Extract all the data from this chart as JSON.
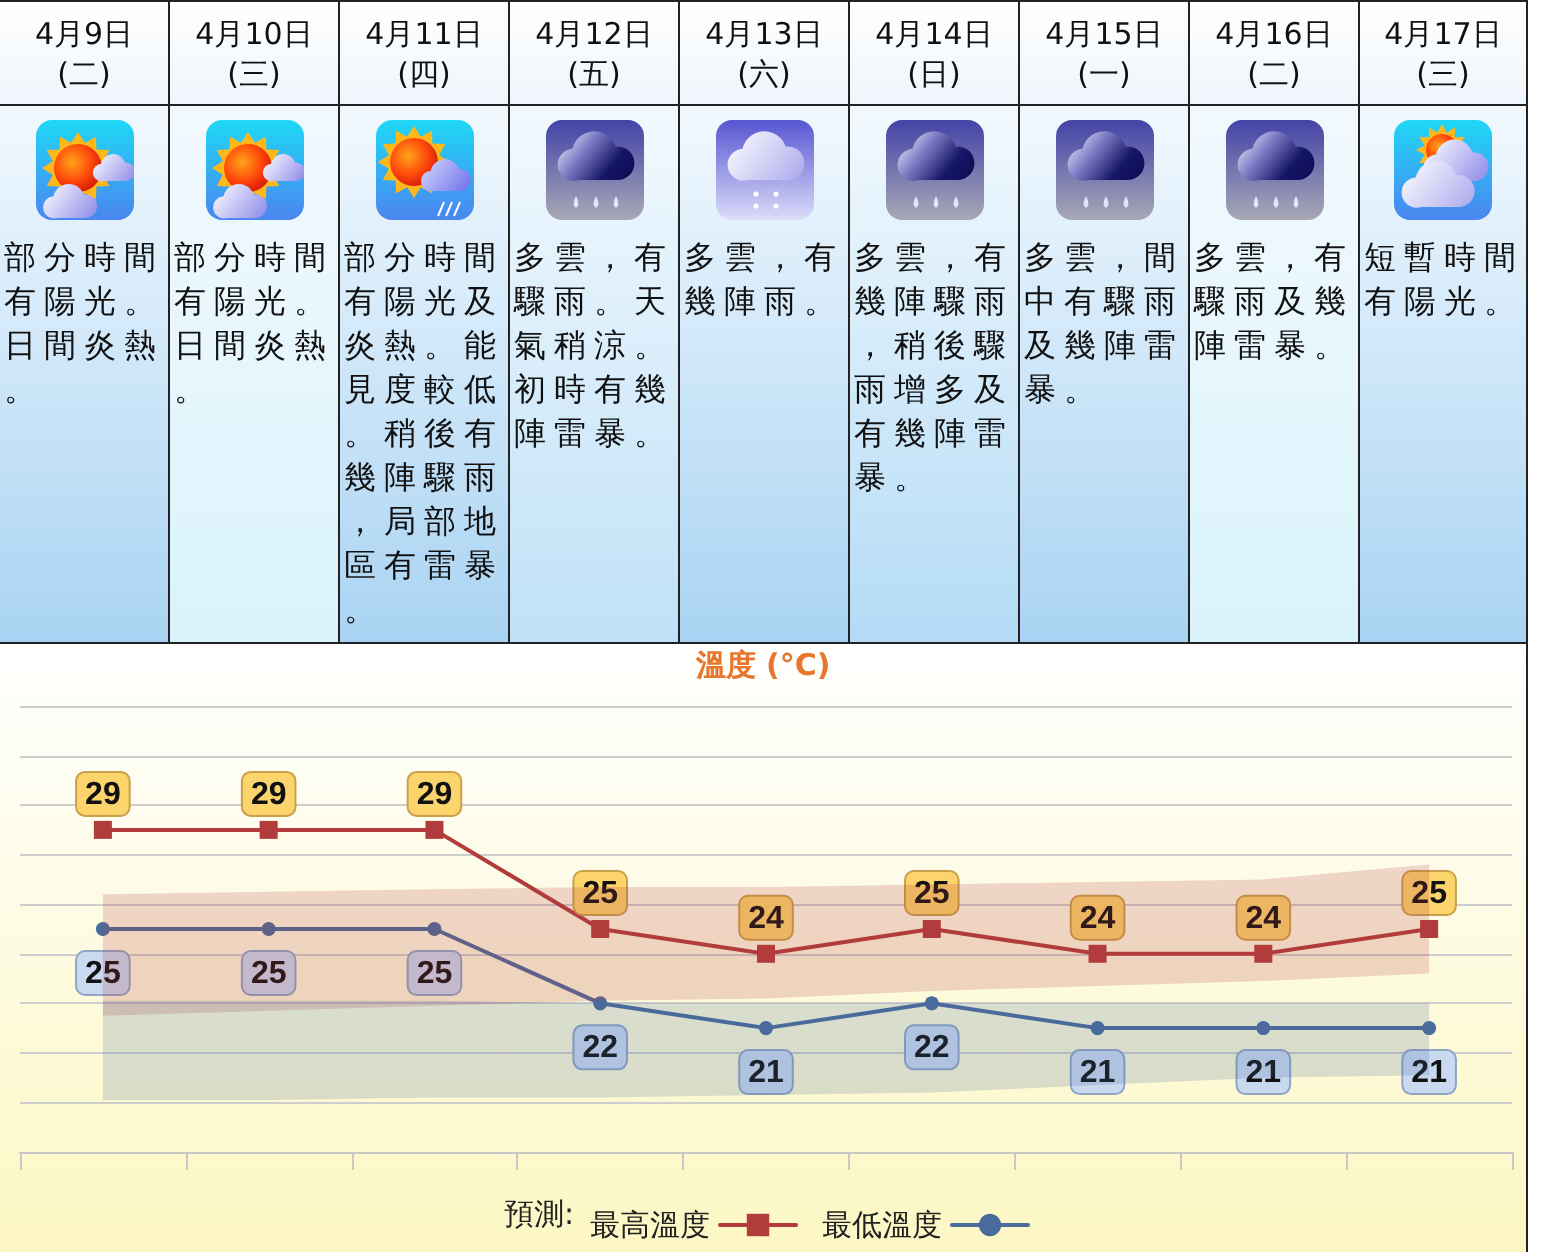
{
  "chart_data": [
    {
      "type": "other",
      "categories": [
        "4月9日\n(二)",
        "4月10日\n(三)",
        "4月11日\n(四)",
        "4月12日\n(五)",
        "4月13日\n(六)",
        "4月14日\n(日)",
        "4月15日\n(一)",
        "4月16日\n(二)",
        "4月17日\n(三)"
      ],
      "annotations": [
        "部分時間有陽光。日間炎熱。",
        "部分時間有陽光。日間炎熱。",
        "部分時間有陽光及炎熱。能見度較低。稍後有幾陣驟雨，局部地區有雷暴。",
        "多雲，有驟雨。天氣稍涼。初時有幾陣雷暴。",
        "多雲，有幾陣雨。",
        "多雲，有幾陣驟雨，稍後驟雨增多及有幾陣雷暴。",
        "多雲，間中有驟雨及幾陣雷暴。",
        "多雲，有驟雨及幾陣雷暴。",
        "短暫時間有陽光。"
      ]
    },
    {
      "type": "line",
      "title": "溫度 (°C)",
      "legend_title": "預測:",
      "categories": [
        null,
        null,
        null,
        null,
        null,
        null,
        null,
        null,
        null
      ],
      "series": [
        {
          "name": "最高溫度",
          "color": "#b23b3b",
          "marker": "square",
          "values": [
            29,
            29,
            29,
            25,
            24,
            25,
            24,
            24,
            25
          ],
          "lower": [
            21.5,
            21.7,
            21.9,
            22.1,
            22.2,
            22.5,
            22.7,
            22.9,
            23.2
          ],
          "upper": [
            26.4,
            26.5,
            26.6,
            26.7,
            26.7,
            26.8,
            26.9,
            27.0,
            27.6
          ]
        },
        {
          "name": "最低溫度",
          "color": "#4a6b9d",
          "marker": "circle",
          "values": [
            25,
            25,
            25,
            22,
            21,
            22,
            21,
            21,
            21
          ],
          "lower": [
            18.1,
            18.1,
            18.2,
            18.2,
            18.3,
            18.4,
            18.7,
            19.0,
            19.1
          ],
          "upper": [
            22.1,
            22.1,
            22.1,
            22.0,
            22.0,
            22.0,
            22.0,
            22.0,
            22.0
          ]
        }
      ],
      "ylim": [
        16,
        34
      ],
      "yticks": [
        {
          "value": 16,
          "label": null
        },
        {
          "value": 18,
          "label": null
        },
        {
          "value": 20,
          "label": null
        },
        {
          "value": 22,
          "label": null
        },
        {
          "value": 24,
          "label": null
        },
        {
          "value": 26,
          "label": null
        },
        {
          "value": 28,
          "label": null
        },
        {
          "value": 30,
          "label": null
        },
        {
          "value": 32,
          "label": null
        },
        {
          "value": 34,
          "label": null
        }
      ],
      "tick_labels": false,
      "grid": "y",
      "legend": "bottom",
      "data_labels": true
    }
  ]
}
